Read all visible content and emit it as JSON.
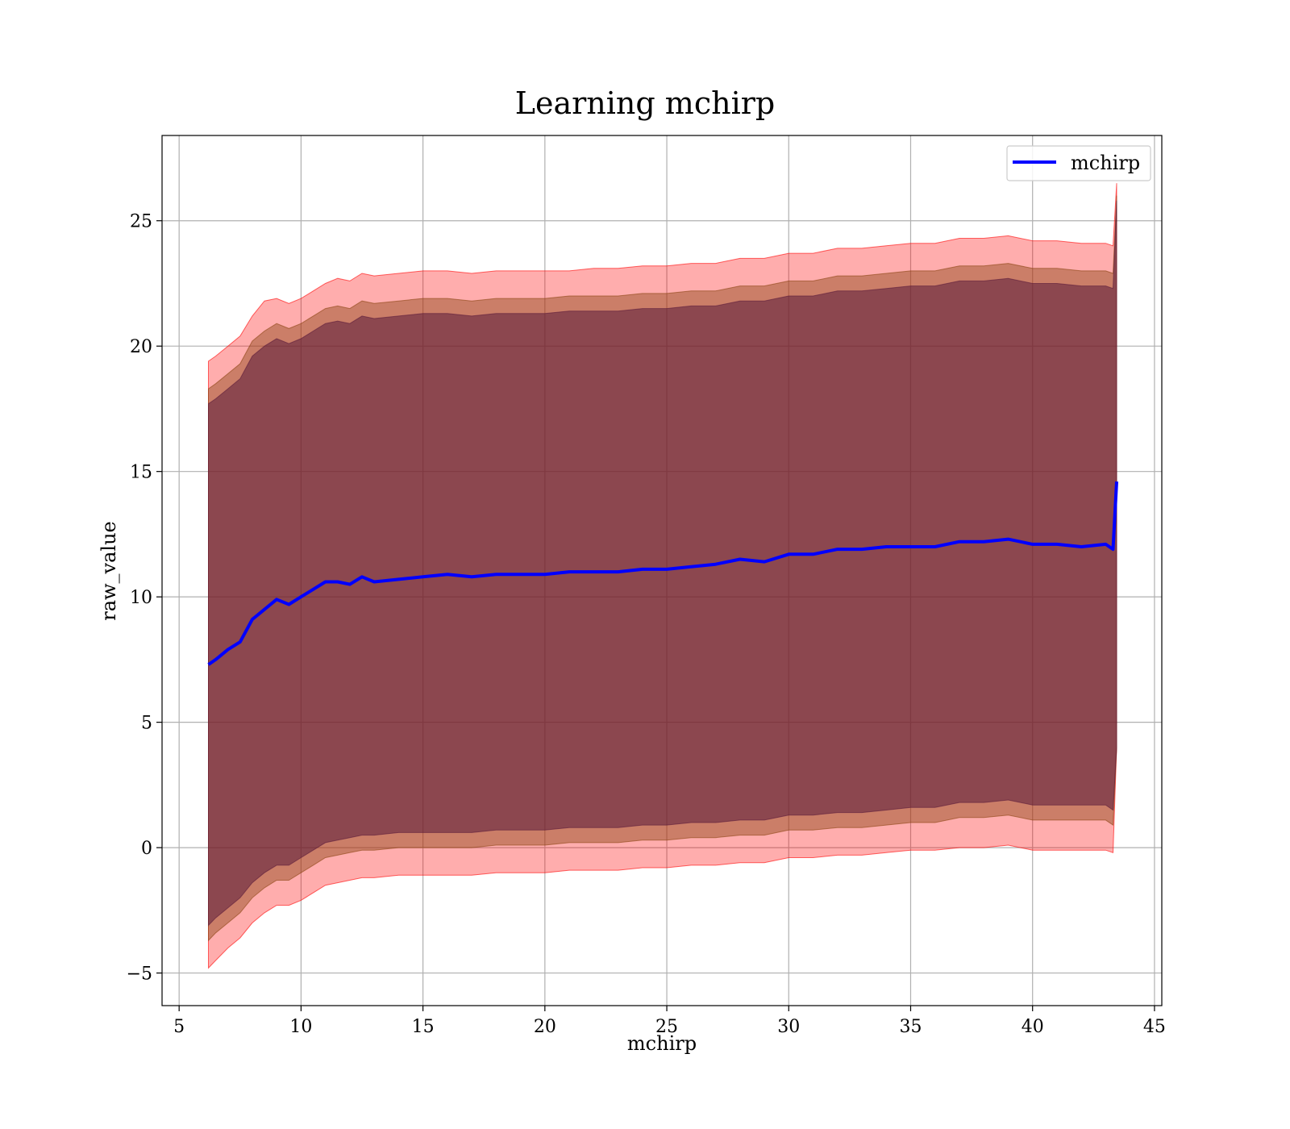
{
  "chart_data": {
    "type": "area",
    "title": "Learning mchirp",
    "xlabel": "mchirp",
    "ylabel": "raw_value",
    "xlim": [
      4.3,
      45.3
    ],
    "ylim": [
      -6.3,
      28.4
    ],
    "xticks": [
      5,
      10,
      15,
      20,
      25,
      30,
      35,
      40,
      45
    ],
    "yticks": [
      -5,
      0,
      5,
      10,
      15,
      20,
      25
    ],
    "ytick_labels": [
      "−5",
      "0",
      "5",
      "10",
      "15",
      "20",
      "25"
    ],
    "grid": true,
    "legend": {
      "position": "top-right",
      "entries": [
        "mchirp"
      ]
    },
    "colors": {
      "line": "#0000ff",
      "band_outer": "#ff0000",
      "band_middle": "#8b4513",
      "band_inner": "#5a1a3a"
    },
    "x": [
      6.2,
      6.5,
      7.0,
      7.5,
      8.0,
      8.5,
      9.0,
      9.5,
      10.0,
      10.5,
      11.0,
      11.5,
      12.0,
      12.5,
      13.0,
      14.0,
      15.0,
      16.0,
      17.0,
      18.0,
      19.0,
      20.0,
      21.0,
      22.0,
      23.0,
      24.0,
      25.0,
      26.0,
      27.0,
      28.0,
      29.0,
      30.0,
      31.0,
      32.0,
      33.0,
      34.0,
      35.0,
      36.0,
      37.0,
      38.0,
      39.0,
      40.0,
      41.0,
      42.0,
      43.0,
      43.3,
      43.45
    ],
    "series": [
      {
        "name": "mchirp",
        "values": [
          7.3,
          7.5,
          7.9,
          8.2,
          9.1,
          9.5,
          9.9,
          9.7,
          10.0,
          10.3,
          10.6,
          10.6,
          10.5,
          10.8,
          10.6,
          10.7,
          10.8,
          10.9,
          10.8,
          10.9,
          10.9,
          10.9,
          11.0,
          11.0,
          11.0,
          11.1,
          11.1,
          11.2,
          11.3,
          11.5,
          11.4,
          11.7,
          11.7,
          11.9,
          11.9,
          12.0,
          12.0,
          12.0,
          12.2,
          12.2,
          12.3,
          12.1,
          12.1,
          12.0,
          12.1,
          11.9,
          14.6
        ]
      }
    ],
    "bands": [
      {
        "level": "outer",
        "lower": [
          -4.8,
          -4.5,
          -4.0,
          -3.6,
          -3.0,
          -2.6,
          -2.3,
          -2.3,
          -2.1,
          -1.8,
          -1.5,
          -1.4,
          -1.3,
          -1.2,
          -1.2,
          -1.1,
          -1.1,
          -1.1,
          -1.1,
          -1.0,
          -1.0,
          -1.0,
          -0.9,
          -0.9,
          -0.9,
          -0.8,
          -0.8,
          -0.7,
          -0.7,
          -0.6,
          -0.6,
          -0.4,
          -0.4,
          -0.3,
          -0.3,
          -0.2,
          -0.1,
          -0.1,
          0.0,
          0.0,
          0.1,
          -0.1,
          -0.1,
          -0.1,
          -0.1,
          -0.2,
          4.0
        ],
        "upper": [
          19.4,
          19.6,
          20.0,
          20.4,
          21.2,
          21.8,
          21.9,
          21.7,
          21.9,
          22.2,
          22.5,
          22.7,
          22.6,
          22.9,
          22.8,
          22.9,
          23.0,
          23.0,
          22.9,
          23.0,
          23.0,
          23.0,
          23.0,
          23.1,
          23.1,
          23.2,
          23.2,
          23.3,
          23.3,
          23.5,
          23.5,
          23.7,
          23.7,
          23.9,
          23.9,
          24.0,
          24.1,
          24.1,
          24.3,
          24.3,
          24.4,
          24.2,
          24.2,
          24.1,
          24.1,
          24.0,
          26.5
        ]
      },
      {
        "level": "middle",
        "lower": [
          -3.7,
          -3.4,
          -3.0,
          -2.6,
          -2.0,
          -1.6,
          -1.3,
          -1.3,
          -1.0,
          -0.7,
          -0.4,
          -0.3,
          -0.2,
          -0.1,
          -0.1,
          0.0,
          0.0,
          0.0,
          0.0,
          0.1,
          0.1,
          0.1,
          0.2,
          0.2,
          0.2,
          0.3,
          0.3,
          0.4,
          0.4,
          0.5,
          0.5,
          0.7,
          0.7,
          0.8,
          0.8,
          0.9,
          1.0,
          1.0,
          1.2,
          1.2,
          1.3,
          1.1,
          1.1,
          1.1,
          1.1,
          0.9,
          4.0
        ],
        "upper": [
          18.3,
          18.5,
          18.9,
          19.3,
          20.2,
          20.6,
          20.9,
          20.7,
          20.9,
          21.2,
          21.5,
          21.6,
          21.5,
          21.8,
          21.7,
          21.8,
          21.9,
          21.9,
          21.8,
          21.9,
          21.9,
          21.9,
          22.0,
          22.0,
          22.0,
          22.1,
          22.1,
          22.2,
          22.2,
          22.4,
          22.4,
          22.6,
          22.6,
          22.8,
          22.8,
          22.9,
          23.0,
          23.0,
          23.2,
          23.2,
          23.3,
          23.1,
          23.1,
          23.0,
          23.0,
          22.9,
          26.0
        ]
      },
      {
        "level": "inner",
        "lower": [
          -3.1,
          -2.8,
          -2.4,
          -2.0,
          -1.4,
          -1.0,
          -0.7,
          -0.7,
          -0.4,
          -0.1,
          0.2,
          0.3,
          0.4,
          0.5,
          0.5,
          0.6,
          0.6,
          0.6,
          0.6,
          0.7,
          0.7,
          0.7,
          0.8,
          0.8,
          0.8,
          0.9,
          0.9,
          1.0,
          1.0,
          1.1,
          1.1,
          1.3,
          1.3,
          1.4,
          1.4,
          1.5,
          1.6,
          1.6,
          1.8,
          1.8,
          1.9,
          1.7,
          1.7,
          1.7,
          1.7,
          1.5,
          4.0
        ],
        "upper": [
          17.7,
          17.9,
          18.3,
          18.7,
          19.6,
          20.0,
          20.3,
          20.1,
          20.3,
          20.6,
          20.9,
          21.0,
          20.9,
          21.2,
          21.1,
          21.2,
          21.3,
          21.3,
          21.2,
          21.3,
          21.3,
          21.3,
          21.4,
          21.4,
          21.4,
          21.5,
          21.5,
          21.6,
          21.6,
          21.8,
          21.8,
          22.0,
          22.0,
          22.2,
          22.2,
          22.3,
          22.4,
          22.4,
          22.6,
          22.6,
          22.7,
          22.5,
          22.5,
          22.4,
          22.4,
          22.3,
          25.8
        ]
      }
    ]
  }
}
